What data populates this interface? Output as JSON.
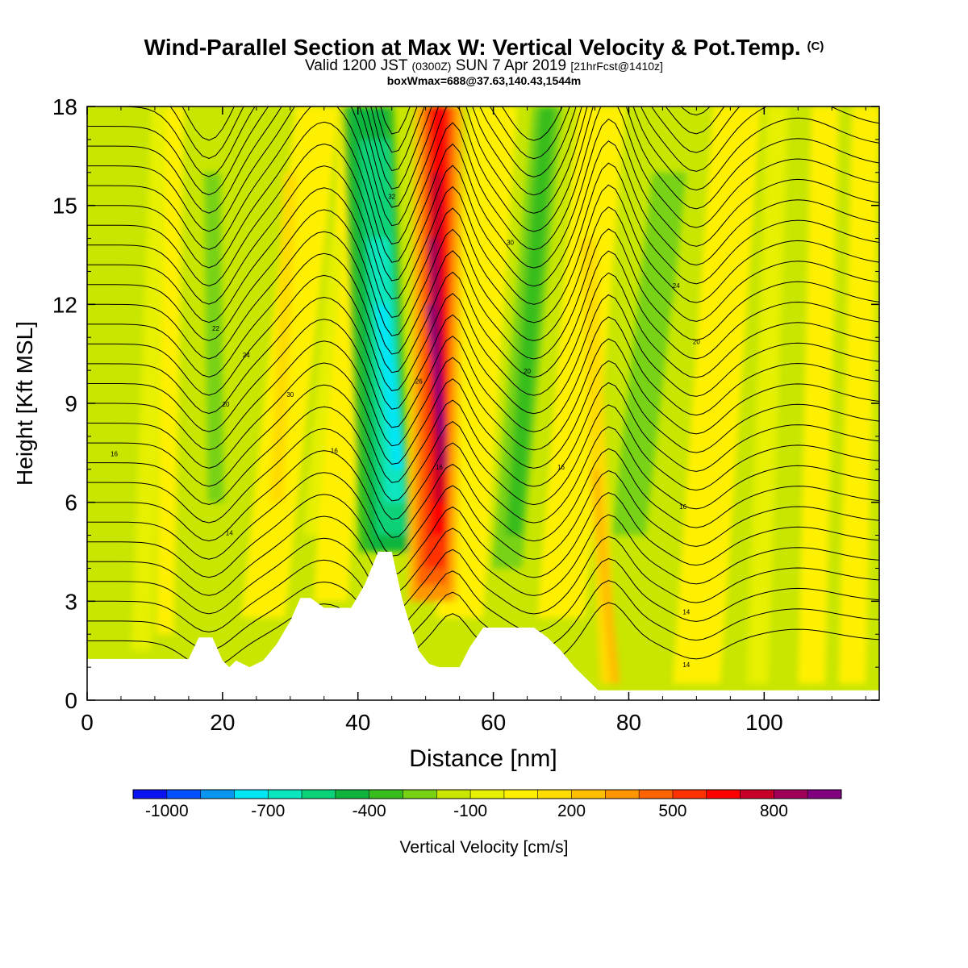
{
  "header": {
    "title": "Wind-Parallel Section at Max W: Vertical Velocity & Pot.Temp.",
    "title_unit": "(C)",
    "valid_prefix": "Valid 1200 JST",
    "valid_utc": "(0300Z)",
    "valid_date": "SUN 7 Apr 2019",
    "forecast": "[21hrFcst@1410z]",
    "boxwmax": "boxWmax=688@37.63,140.43,1544m"
  },
  "chart_data": {
    "type": "heatmap",
    "xlabel": "Distance [nm]",
    "ylabel": "Height [Kft MSL]",
    "xlim": [
      0,
      117
    ],
    "ylim": [
      0,
      18
    ],
    "xticks": [
      "0",
      "20",
      "40",
      "60",
      "80",
      "100"
    ],
    "yticks": [
      "0",
      "3",
      "6",
      "9",
      "12",
      "15",
      "18"
    ],
    "colorbar": {
      "label": "Vertical Velocity [cm/s]",
      "tick_labels": [
        "-1000",
        "-700",
        "-400",
        "-100",
        "200",
        "500",
        "800"
      ],
      "colors": [
        "#0a14f0",
        "#0050ff",
        "#0a96f0",
        "#00e6f5",
        "#0ae6be",
        "#0ad278",
        "#0fb43c",
        "#37be1e",
        "#78d214",
        "#c8e600",
        "#e6f000",
        "#fff000",
        "#ffdc00",
        "#ffbe00",
        "#ff9600",
        "#ff6400",
        "#ff3200",
        "#ff0000",
        "#c80028",
        "#a0005a",
        "#800080"
      ]
    },
    "vertical_velocity_features": [
      {
        "kind": "downdraft",
        "x_range_nm": [
          42,
          50
        ],
        "height_range_kft": [
          4.5,
          18
        ],
        "min_cms": -600
      },
      {
        "kind": "updraft",
        "x_range_nm": [
          50,
          54
        ],
        "height_range_kft": [
          3,
          18
        ],
        "max_cms": 688
      },
      {
        "kind": "downdraft",
        "x_range_nm": [
          62,
          68
        ],
        "height_range_kft": [
          4,
          18
        ],
        "min_cms": -300
      },
      {
        "kind": "downdraft",
        "x_range_nm": [
          80,
          88
        ],
        "height_range_kft": [
          5,
          16
        ],
        "min_cms": -200
      },
      {
        "kind": "downdraft",
        "x_range_nm": [
          17,
          21
        ],
        "height_range_kft": [
          6,
          16
        ],
        "min_cms": -200
      }
    ],
    "theta_contour_labels": [
      "14",
      "16",
      "18",
      "20",
      "22",
      "24",
      "26",
      "28",
      "30",
      "32"
    ],
    "terrain_kft": [
      [
        0,
        1.25
      ],
      [
        15,
        1.25
      ],
      [
        16.5,
        1.9
      ],
      [
        18.5,
        1.9
      ],
      [
        20,
        1.2
      ],
      [
        21,
        1.0
      ],
      [
        22,
        1.2
      ],
      [
        24,
        1.0
      ],
      [
        26,
        1.2
      ],
      [
        28,
        1.7
      ],
      [
        30,
        2.4
      ],
      [
        31.5,
        3.1
      ],
      [
        33,
        3.1
      ],
      [
        35,
        2.8
      ],
      [
        39,
        2.8
      ],
      [
        41,
        3.5
      ],
      [
        42,
        4.0
      ],
      [
        43,
        4.5
      ],
      [
        45,
        4.5
      ],
      [
        46.5,
        3.1
      ],
      [
        47.5,
        2.4
      ],
      [
        49,
        1.5
      ],
      [
        50.5,
        1.1
      ],
      [
        52,
        1.0
      ],
      [
        55,
        1.0
      ],
      [
        56.5,
        1.6
      ],
      [
        58.5,
        2.2
      ],
      [
        60,
        2.2
      ],
      [
        66,
        2.2
      ],
      [
        68,
        1.9
      ],
      [
        70,
        1.5
      ],
      [
        72,
        1.0
      ],
      [
        74,
        0.6
      ],
      [
        75.5,
        0.3
      ],
      [
        117,
        0.3
      ]
    ]
  }
}
